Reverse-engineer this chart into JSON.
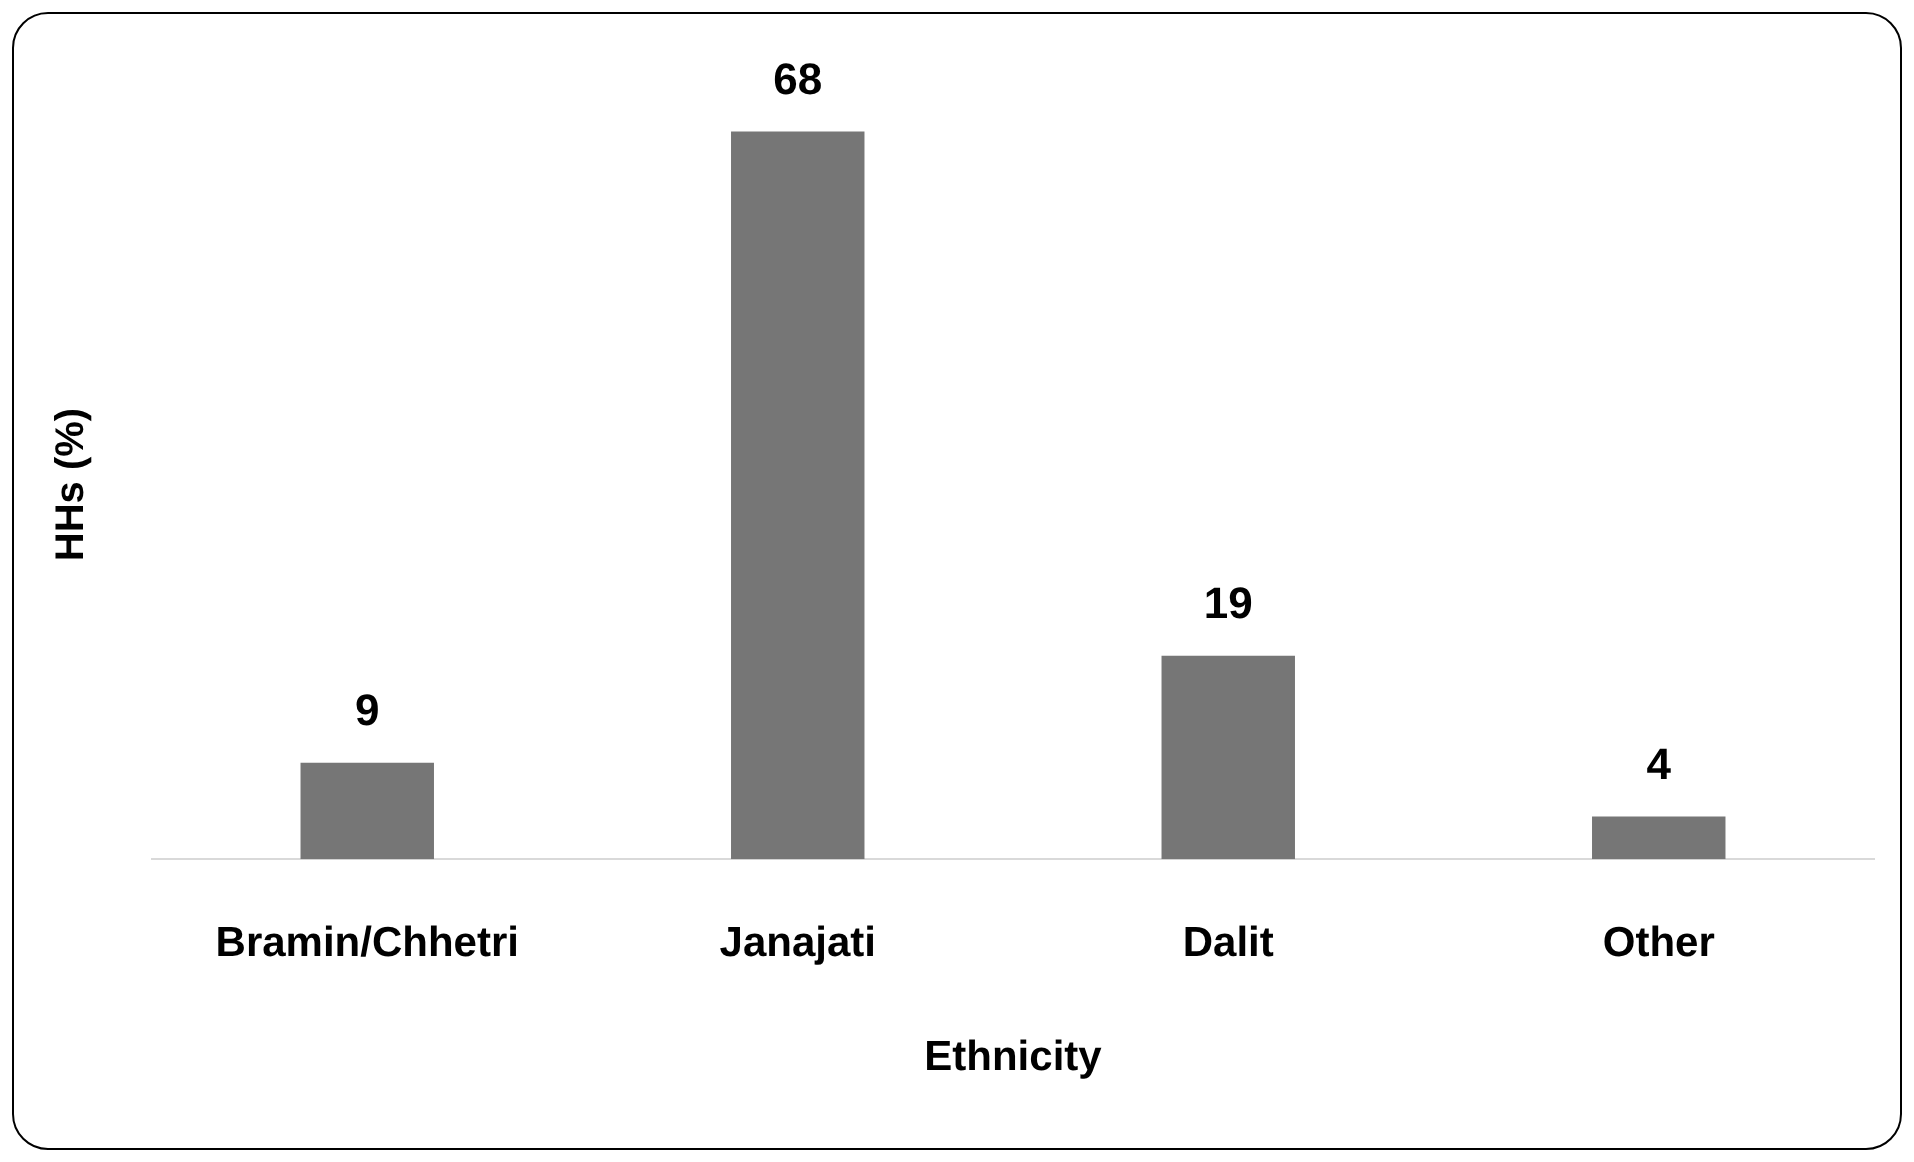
{
  "chart_data": {
    "type": "bar",
    "xlabel": "Ethnicity",
    "ylabel": "HHs (%)",
    "categories": [
      "Bramin/Chhetri",
      "Janajati",
      "Dalit",
      "Other"
    ],
    "values": [
      9,
      68,
      19,
      4
    ],
    "color": "#767676",
    "data_labels": true
  }
}
